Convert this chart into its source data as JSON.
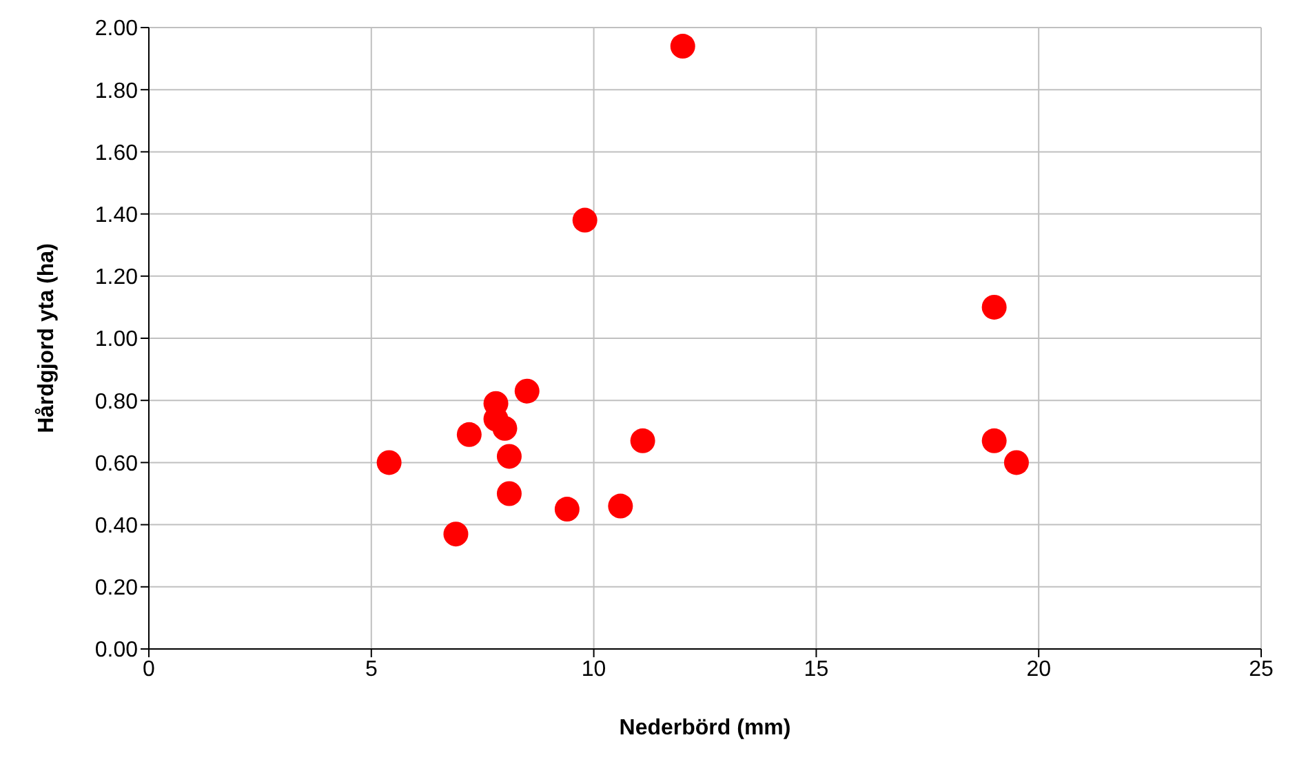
{
  "chart_data": {
    "type": "scatter",
    "xlabel": "Nederbörd (mm)",
    "ylabel": "Hårdgjord yta (ha)",
    "x": [
      5.4,
      6.9,
      7.2,
      7.8,
      7.8,
      8.0,
      8.1,
      8.1,
      8.5,
      9.4,
      9.8,
      10.6,
      11.1,
      12.0,
      19.0,
      19.0,
      19.5
    ],
    "series": [
      {
        "color": "#ff0000",
        "values": [
          0.6,
          0.37,
          0.69,
          0.79,
          0.74,
          0.71,
          0.62,
          0.5,
          0.83,
          0.45,
          1.38,
          0.46,
          0.67,
          1.94,
          1.1,
          0.67,
          0.6
        ]
      }
    ],
    "xlim": [
      0,
      25
    ],
    "xticks": [
      0,
      5,
      10,
      15,
      20,
      25
    ],
    "ylim": [
      0,
      2
    ],
    "yticks": [
      {
        "value": 0,
        "label": "0.00"
      },
      {
        "value": 0.2,
        "label": "0.20"
      },
      {
        "value": 0.4,
        "label": "0.40"
      },
      {
        "value": 0.6,
        "label": "0.60"
      },
      {
        "value": 0.8,
        "label": "0.80"
      },
      {
        "value": 1,
        "label": "1.00"
      },
      {
        "value": 1.2,
        "label": "1.20"
      },
      {
        "value": 1.4,
        "label": "1.40"
      },
      {
        "value": 1.6,
        "label": "1.60"
      },
      {
        "value": 1.8,
        "label": "1.80"
      },
      {
        "value": 2,
        "label": "2.00"
      }
    ],
    "grid": true,
    "marker": "circle",
    "legend": false
  }
}
